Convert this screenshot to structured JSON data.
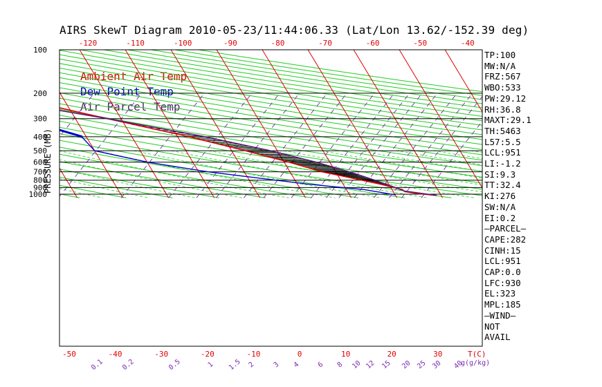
{
  "title": "AIRS SkewT Diagram 2010-05-23/11:44:06.33 (Lat/Lon 13.62/-152.39 deg)",
  "y_axis_label": "PRESSURE (MB)",
  "legend": [
    {
      "label": "Ambient Air Temp",
      "color": "#e00000"
    },
    {
      "label": "Dew Point Temp",
      "color": "#0000cc"
    },
    {
      "label": "Air Parcel Temp",
      "color": "#5a1a7a"
    }
  ],
  "stats": [
    "TP:100",
    "MW:N/A",
    "FRZ:567",
    "WBO:533",
    "PW:29.12",
    "RH:36.8",
    "MAXT:29.1",
    "TH:5463",
    "L57:5.5",
    "LCL:951",
    "LI:-1.2",
    "SI:9.3",
    "TT:32.4",
    "KI:276",
    "SW:N/A",
    "EI:0.2",
    "—PARCEL—",
    "CAPE:282",
    "CINH:15",
    "LCL:951",
    "CAP:0.0",
    "LFC:930",
    "EL:323",
    "MPL:185",
    "—WIND—",
    "NOT",
    "AVAIL"
  ],
  "chart_data": {
    "type": "line",
    "title": "AIRS SkewT Diagram 2010-05-23/11:44:06.33 (Lat/Lon 13.62/-152.39 deg)",
    "ylabel": "PRESSURE (MB)",
    "xlabel": "T(C)",
    "pressure_ticks": [
      100,
      200,
      300,
      400,
      500,
      600,
      700,
      800,
      900,
      1000
    ],
    "bottom_temp_ticks": [
      "-50",
      "-40",
      "-30",
      "-20",
      "-10",
      "0",
      "10",
      "20",
      "30"
    ],
    "bottom_temp_values": [
      -50,
      -40,
      -30,
      -20,
      -10,
      0,
      10,
      20,
      30
    ],
    "top_temp_ticks": [
      "-120",
      "-110",
      "-100",
      "-90",
      "-80",
      "-70",
      "-60",
      "-50",
      "-40"
    ],
    "top_temp_values": [
      -120,
      -110,
      -100,
      -90,
      -80,
      -70,
      -60,
      -50,
      -40
    ],
    "mixing_ratio_ticks": [
      "0.1",
      "0.2",
      "0.5",
      "1",
      "1.5",
      "2",
      "3",
      "4",
      "6",
      "8",
      "10",
      "12",
      "15",
      "20",
      "25",
      "30",
      "40"
    ],
    "mixing_ratio_values": [
      0.1,
      0.2,
      0.5,
      1,
      1.5,
      2,
      3,
      4,
      6,
      8,
      10,
      12,
      15,
      20,
      25,
      30,
      40
    ],
    "mixing_ratio_unit": "g(g/kg)",
    "temp_unit": "T(C)",
    "series": [
      {
        "name": "Ambient Air Temp",
        "color": "#e00000",
        "points": [
          [
            1020,
            29.0
          ],
          [
            990,
            25.0
          ],
          [
            960,
            22.5
          ],
          [
            930,
            22.3
          ],
          [
            850,
            18.0
          ],
          [
            750,
            11.0
          ],
          [
            700,
            7.0
          ],
          [
            600,
            1.0
          ],
          [
            500,
            -7.0
          ],
          [
            400,
            -17.5
          ],
          [
            300,
            -33.0
          ],
          [
            250,
            -42.5
          ],
          [
            200,
            -53.0
          ],
          [
            165,
            -62.0
          ],
          [
            150,
            -70.0
          ],
          [
            125,
            -78.0
          ],
          [
            100,
            -85.0
          ]
        ]
      },
      {
        "name": "Dew Point Temp",
        "color": "#0000cc",
        "points": [
          [
            1010,
            20.0
          ],
          [
            970,
            17.0
          ],
          [
            930,
            14.0
          ],
          [
            850,
            2.0
          ],
          [
            700,
            -18.0
          ],
          [
            600,
            -30.0
          ],
          [
            500,
            -40.0
          ],
          [
            400,
            -41.0
          ],
          [
            300,
            -52.0
          ],
          [
            260,
            -56.5
          ],
          [
            200,
            -65.0
          ],
          [
            150,
            -78.0
          ],
          [
            125,
            -84.0
          ],
          [
            100,
            -92.0
          ]
        ]
      },
      {
        "name": "Air Parcel Temp",
        "color": "#5a1a7a",
        "points": [
          [
            1020,
            29.0
          ],
          [
            951,
            22.5
          ],
          [
            900,
            21.0
          ],
          [
            800,
            17.5
          ],
          [
            700,
            13.0
          ],
          [
            600,
            7.0
          ],
          [
            500,
            -1.5
          ],
          [
            400,
            -14.0
          ],
          [
            300,
            -33.0
          ],
          [
            200,
            -62.0
          ],
          [
            150,
            -78.5
          ],
          [
            125,
            -90.0
          ],
          [
            100,
            -103.0
          ]
        ]
      }
    ]
  }
}
